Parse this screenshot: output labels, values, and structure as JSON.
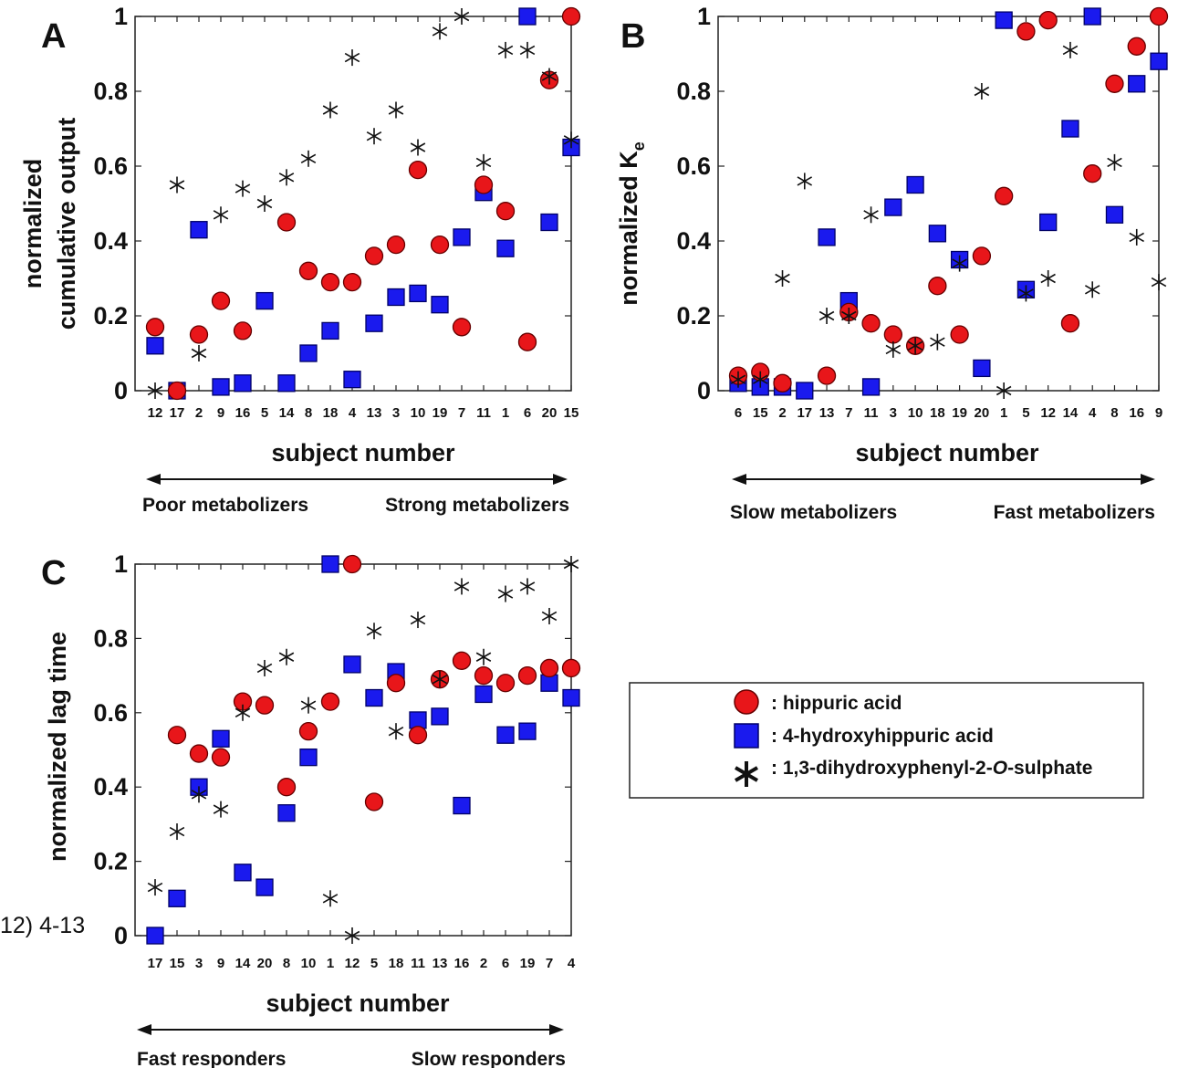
{
  "page_fragment": "12) 4-13",
  "legend": {
    "items": [
      {
        "series": "hippuric",
        "label": ": hippuric acid",
        "marker": "circle",
        "color": "#e8161a"
      },
      {
        "series": "hydroxy",
        "label": ": 4-hydroxyhippuric acid",
        "marker": "square",
        "color": "#1a1aee"
      },
      {
        "series": "sulphate",
        "label_prefix": ": 1,3-dihydroxyphenyl-2-",
        "label_italic": "O",
        "label_suffix": "-sulphate",
        "marker": "asterisk",
        "color": "#111111"
      }
    ]
  },
  "chart_data": [
    {
      "type": "scatter",
      "panel": "A",
      "ylabel_lines": [
        "normalized",
        "cumulative output"
      ],
      "xlabel": "subject number",
      "ylim": [
        0,
        1
      ],
      "yticks": [
        "0",
        "0.2",
        "0.4",
        "0.6",
        "0.8",
        "1"
      ],
      "categories": [
        "12",
        "17",
        "2",
        "9",
        "16",
        "5",
        "14",
        "8",
        "18",
        "4",
        "13",
        "3",
        "10",
        "19",
        "7",
        "11",
        "1",
        "6",
        "20",
        "15"
      ],
      "arrow": {
        "left_label": "Poor metabolizers",
        "right_label": "Strong metabolizers"
      },
      "series": [
        {
          "key": "hippuric",
          "values": [
            0.17,
            0.0,
            0.15,
            0.24,
            0.16,
            null,
            0.45,
            0.32,
            0.29,
            0.29,
            0.36,
            0.39,
            0.59,
            0.39,
            0.17,
            0.55,
            0.48,
            0.13,
            0.83,
            1.0
          ]
        },
        {
          "key": "hydroxy",
          "values": [
            0.12,
            0.0,
            0.43,
            0.01,
            0.02,
            0.24,
            0.02,
            0.1,
            0.16,
            0.03,
            0.18,
            0.25,
            0.26,
            0.23,
            0.41,
            0.53,
            0.38,
            1.0,
            0.45,
            0.65
          ]
        },
        {
          "key": "sulphate",
          "values": [
            0.0,
            0.55,
            0.1,
            0.47,
            0.54,
            0.5,
            0.57,
            0.62,
            0.75,
            0.89,
            0.68,
            0.75,
            0.65,
            0.96,
            1.0,
            0.61,
            0.91,
            0.91,
            0.84,
            0.67
          ]
        }
      ]
    },
    {
      "type": "scatter",
      "panel": "B",
      "ylabel_main": "normalized K",
      "ylabel_sub": "e",
      "xlabel": "subject number",
      "ylim": [
        0,
        1
      ],
      "yticks": [
        "0",
        "0.2",
        "0.4",
        "0.6",
        "0.8",
        "1"
      ],
      "categories": [
        "6",
        "15",
        "2",
        "17",
        "13",
        "7",
        "11",
        "3",
        "10",
        "18",
        "19",
        "20",
        "1",
        "5",
        "12",
        "14",
        "4",
        "8",
        "16",
        "9"
      ],
      "arrow": {
        "left_label": "Slow metabolizers",
        "right_label": "Fast metabolizers"
      },
      "series": [
        {
          "key": "hippuric",
          "values": [
            0.04,
            0.05,
            0.02,
            null,
            0.04,
            0.21,
            0.18,
            0.15,
            0.12,
            0.28,
            0.15,
            0.36,
            0.52,
            0.96,
            0.99,
            0.18,
            0.58,
            0.82,
            0.92,
            1.0
          ]
        },
        {
          "key": "hydroxy",
          "values": [
            0.02,
            0.01,
            0.01,
            0.0,
            0.41,
            0.24,
            0.01,
            0.49,
            0.55,
            0.42,
            0.35,
            0.06,
            0.99,
            0.27,
            0.45,
            0.7,
            1.0,
            0.47,
            0.82,
            0.88
          ]
        },
        {
          "key": "sulphate",
          "values": [
            0.03,
            0.03,
            0.3,
            0.56,
            0.2,
            0.2,
            0.47,
            0.11,
            0.12,
            0.13,
            0.34,
            0.8,
            0.0,
            0.26,
            0.3,
            0.91,
            0.27,
            0.61,
            0.41,
            0.29
          ]
        }
      ]
    },
    {
      "type": "scatter",
      "panel": "C",
      "ylabel_lines": [
        "normalized lag time"
      ],
      "xlabel": "subject number",
      "ylim": [
        0,
        1
      ],
      "yticks": [
        "0",
        "0.2",
        "0.4",
        "0.6",
        "0.8",
        "1"
      ],
      "categories": [
        "17",
        "15",
        "3",
        "9",
        "14",
        "20",
        "8",
        "10",
        "1",
        "12",
        "5",
        "18",
        "11",
        "13",
        "16",
        "2",
        "6",
        "19",
        "7",
        "4"
      ],
      "arrow": {
        "left_label": "Fast responders",
        "right_label": "Slow responders"
      },
      "series": [
        {
          "key": "hippuric",
          "values": [
            null,
            0.54,
            0.49,
            0.48,
            0.63,
            0.62,
            0.4,
            0.55,
            0.63,
            1.0,
            0.36,
            0.68,
            0.54,
            0.69,
            0.74,
            0.7,
            0.68,
            0.7,
            0.72,
            0.72
          ]
        },
        {
          "key": "hydroxy",
          "values": [
            0.0,
            0.1,
            0.4,
            0.53,
            0.17,
            0.13,
            0.33,
            0.48,
            1.0,
            0.73,
            0.64,
            0.71,
            0.58,
            0.59,
            0.35,
            0.65,
            0.54,
            0.55,
            0.68,
            0.64
          ]
        },
        {
          "key": "sulphate",
          "values": [
            0.13,
            0.28,
            0.38,
            0.34,
            0.6,
            0.72,
            0.75,
            0.62,
            0.1,
            0.0,
            0.82,
            0.55,
            0.85,
            0.69,
            0.94,
            0.75,
            0.92,
            0.94,
            0.86,
            1.0
          ]
        }
      ]
    }
  ]
}
